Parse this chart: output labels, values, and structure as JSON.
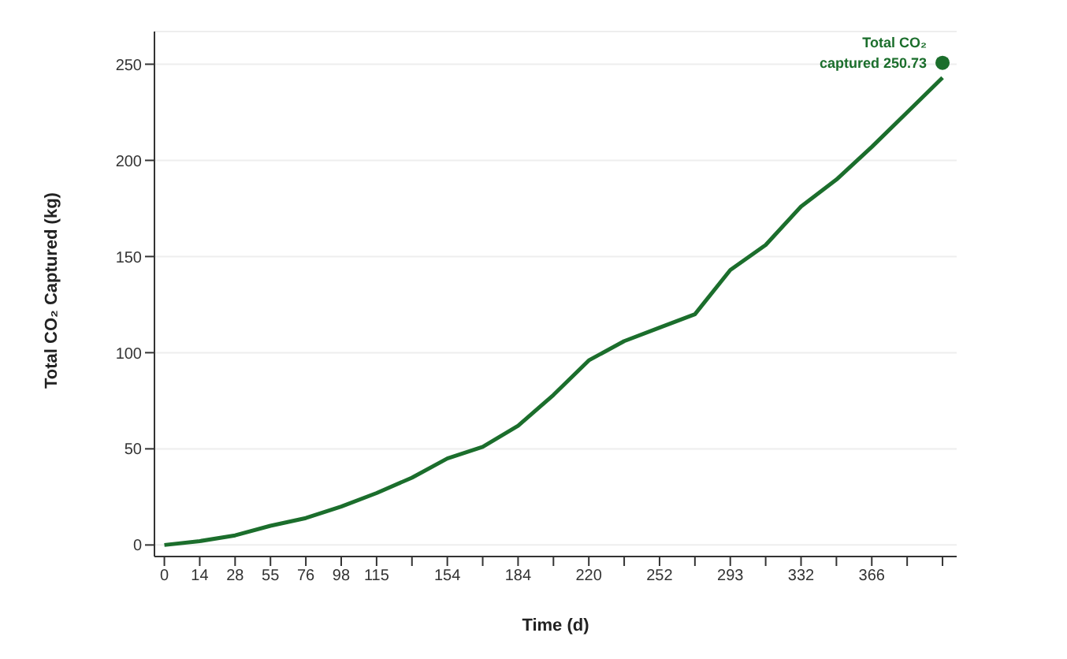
{
  "chart_data": {
    "type": "line",
    "xlabel": "Time (d)",
    "ylabel": "Total CO₂ Captured (kg)",
    "categories": [
      "0",
      "14",
      "28",
      "55",
      "76",
      "98",
      "115",
      null,
      "154",
      null,
      "184",
      null,
      "220",
      null,
      "252",
      null,
      "293",
      null,
      "332",
      null,
      "366",
      null,
      null
    ],
    "series": [
      {
        "color": "#1b6e2c",
        "values": [
          0,
          2,
          5,
          10,
          14,
          20,
          27,
          35,
          45,
          51,
          62,
          78,
          96,
          106,
          113,
          120,
          143,
          156,
          176,
          190,
          207,
          225,
          243
        ]
      },
      {
        "type": "scatter",
        "marker": "circle",
        "color": "#1b6e2c",
        "values": [
          null,
          null,
          null,
          null,
          null,
          null,
          null,
          null,
          null,
          null,
          null,
          null,
          null,
          null,
          null,
          null,
          null,
          null,
          null,
          null,
          null,
          null,
          250.73
        ]
      }
    ],
    "annotations": [
      "Total CO₂ captured 250.73"
    ],
    "ylim": [
      -6,
      267
    ],
    "yticks": [
      0,
      50,
      100,
      150,
      200,
      250
    ],
    "grid": "y",
    "legend": false,
    "line_style": "solid"
  }
}
